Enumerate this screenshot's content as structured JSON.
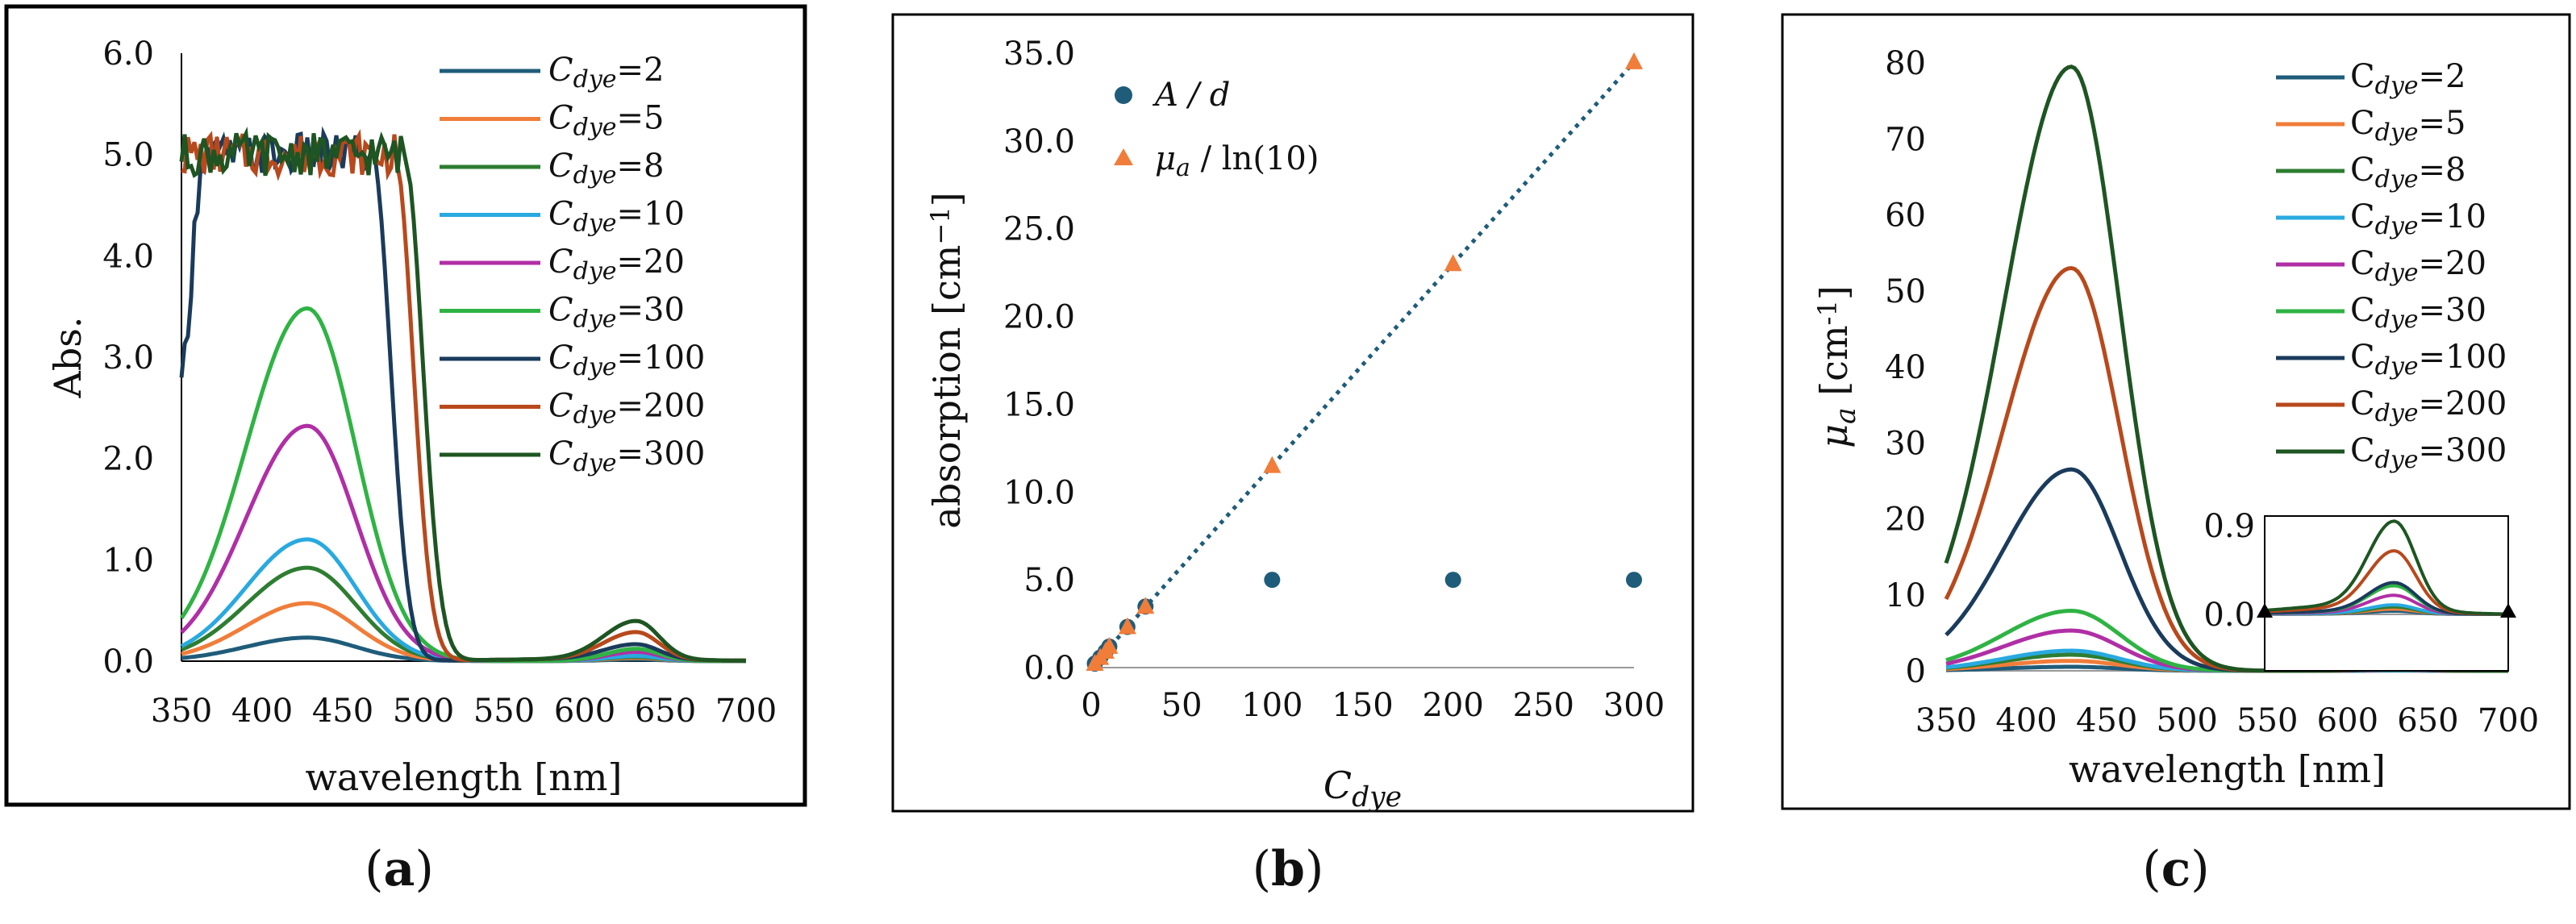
{
  "chart_data": [
    {
      "panel": "a",
      "type": "line",
      "title": "",
      "xlabel": "wavelength [nm]",
      "ylabel": "Abs.",
      "xlim": [
        350,
        700
      ],
      "ylim": [
        0,
        6
      ],
      "xticks": [
        "350",
        "400",
        "450",
        "500",
        "550",
        "600",
        "650",
        "700"
      ],
      "yticks": [
        "0.0",
        "1.0",
        "2.0",
        "3.0",
        "4.0",
        "5.0",
        "6.0"
      ],
      "legend_position": "top-right",
      "series": [
        {
          "name": "Cdye=2",
          "label_main": "C",
          "label_sub": "dye",
          "label_tail": "=2",
          "color": "#1f5c7a",
          "peak": 0.23,
          "red": 0.015,
          "saturated": false
        },
        {
          "name": "Cdye=5",
          "label_main": "C",
          "label_sub": "dye",
          "label_tail": "=5",
          "color": "#f07d3a",
          "peak": 0.57,
          "red": 0.03,
          "saturated": false
        },
        {
          "name": "Cdye=8",
          "label_main": "C",
          "label_sub": "dye",
          "label_tail": "=8",
          "color": "#2e7d32",
          "peak": 0.92,
          "red": 0.04,
          "saturated": false
        },
        {
          "name": "Cdye=10",
          "label_main": "C",
          "label_sub": "dye",
          "label_tail": "=10",
          "color": "#29a9e0",
          "peak": 1.2,
          "red": 0.05,
          "saturated": false
        },
        {
          "name": "Cdye=20",
          "label_main": "C",
          "label_sub": "dye",
          "label_tail": "=20",
          "color": "#b02fa5",
          "peak": 2.32,
          "red": 0.09,
          "saturated": false
        },
        {
          "name": "Cdye=30",
          "label_main": "C",
          "label_sub": "dye",
          "label_tail": "=30",
          "color": "#2fb344",
          "peak": 3.48,
          "red": 0.12,
          "saturated": false
        },
        {
          "name": "Cdye=100",
          "label_main": "C",
          "label_sub": "dye",
          "label_tail": "=100",
          "color": "#1a3b5c",
          "peak": 5.0,
          "red": 0.15,
          "saturated": true,
          "edge": 468
        },
        {
          "name": "Cdye=200",
          "label_main": "C",
          "label_sub": "dye",
          "label_tail": "=200",
          "color": "#b8491c",
          "peak": 5.0,
          "red": 0.27,
          "saturated": true,
          "edge": 482
        },
        {
          "name": "Cdye=300",
          "label_main": "C",
          "label_sub": "dye",
          "label_tail": "=300",
          "color": "#1e5522",
          "peak": 5.0,
          "red": 0.38,
          "saturated": true,
          "edge": 488
        }
      ]
    },
    {
      "panel": "b",
      "type": "scatter",
      "title": "",
      "xlabel_main": "C",
      "xlabel_sub": "dye",
      "ylabel": "absorption [cm",
      "ylabel_sup": "−1",
      "ylabel_end": "]",
      "xlim": [
        0,
        300
      ],
      "ylim": [
        0,
        35
      ],
      "xticks": [
        "0",
        "50",
        "100",
        "150",
        "200",
        "250",
        "300"
      ],
      "yticks": [
        "0.0",
        "5.0",
        "10.0",
        "15.0",
        "20.0",
        "25.0",
        "30.0",
        "35.0"
      ],
      "legend_position": "top-left",
      "series": [
        {
          "name": "A / d",
          "marker": "circle",
          "color": "#1f5c7a",
          "x": [
            2,
            5,
            8,
            10,
            20,
            30,
            100,
            200,
            300
          ],
          "y": [
            0.23,
            0.57,
            0.92,
            1.2,
            2.32,
            3.48,
            5.0,
            5.0,
            5.0
          ]
        },
        {
          "name": "μa / ln(10)",
          "label_mu": "μ",
          "label_sub": "a",
          "label_tail": " / ln(10)",
          "marker": "triangle",
          "color": "#f07d3a",
          "x": [
            2,
            5,
            8,
            10,
            20,
            30,
            100,
            200,
            300
          ],
          "y": [
            0.23,
            0.57,
            0.92,
            1.2,
            2.32,
            3.48,
            11.5,
            23.0,
            34.5
          ]
        }
      ],
      "trendline": {
        "style": "dotted",
        "color": "#1f5c7a",
        "slope": 0.115,
        "intercept": 0
      }
    },
    {
      "panel": "c",
      "type": "line",
      "title": "",
      "xlabel": "wavelength [nm]",
      "ylabel_mu": "μ",
      "ylabel_sub": "a",
      "ylabel_tail": " [cm",
      "ylabel_sup": "-1",
      "ylabel_end": "]",
      "xlim": [
        350,
        700
      ],
      "ylim": [
        0,
        80
      ],
      "xticks": [
        "350",
        "400",
        "450",
        "500",
        "550",
        "600",
        "650",
        "700"
      ],
      "yticks": [
        "0",
        "10",
        "20",
        "30",
        "40",
        "50",
        "60",
        "70",
        "80"
      ],
      "legend_position": "top-right",
      "inset": {
        "xlim": [
          550,
          700
        ],
        "ylim": [
          0,
          0.9
        ],
        "yticks": [
          "0.0",
          "0.9"
        ]
      },
      "series": [
        {
          "name": "Cdye=2",
          "label_main": "C",
          "label_sub": "dye",
          "label_tail": "=2",
          "color": "#1f5c7a",
          "peak": 0.53,
          "red": 0.03
        },
        {
          "name": "Cdye=5",
          "label_main": "C",
          "label_sub": "dye",
          "label_tail": "=5",
          "color": "#f07d3a",
          "peak": 1.31,
          "red": 0.05
        },
        {
          "name": "Cdye=8",
          "label_main": "C",
          "label_sub": "dye",
          "label_tail": "=8",
          "color": "#2e7d32",
          "peak": 2.12,
          "red": 0.07
        },
        {
          "name": "Cdye=10",
          "label_main": "C",
          "label_sub": "dye",
          "label_tail": "=10",
          "color": "#29a9e0",
          "peak": 2.65,
          "red": 0.09
        },
        {
          "name": "Cdye=20",
          "label_main": "C",
          "label_sub": "dye",
          "label_tail": "=20",
          "color": "#b02fa5",
          "peak": 5.3,
          "red": 0.18
        },
        {
          "name": "Cdye=30",
          "label_main": "C",
          "label_sub": "dye",
          "label_tail": "=30",
          "color": "#2fb344",
          "peak": 7.9,
          "red": 0.27
        },
        {
          "name": "Cdye=100",
          "label_main": "C",
          "label_sub": "dye",
          "label_tail": "=100",
          "color": "#1a3b5c",
          "peak": 26.5,
          "red": 0.3
        },
        {
          "name": "Cdye=200",
          "label_main": "C",
          "label_sub": "dye",
          "label_tail": "=200",
          "color": "#b8491c",
          "peak": 53.0,
          "red": 0.6
        },
        {
          "name": "Cdye=300",
          "label_main": "C",
          "label_sub": "dye",
          "label_tail": "=300",
          "color": "#1e5522",
          "peak": 79.5,
          "red": 0.88
        }
      ]
    }
  ],
  "captions": [
    "(a)",
    "(b)",
    "(c)"
  ],
  "caption_letters": [
    "a",
    "b",
    "c"
  ]
}
